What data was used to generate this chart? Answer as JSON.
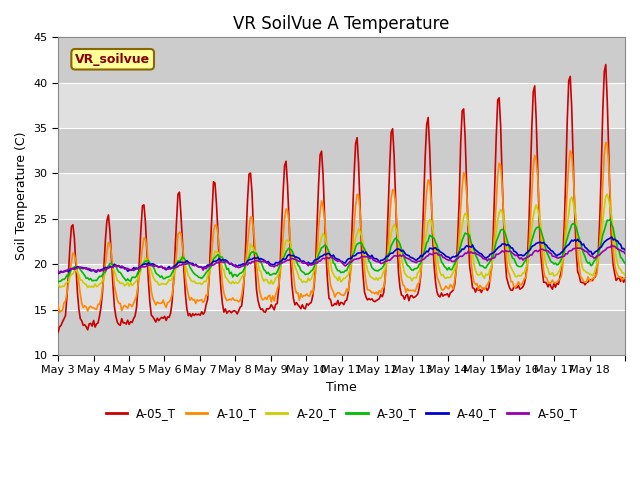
{
  "title": "VR SoilVue A Temperature",
  "ylabel": "Soil Temperature (C)",
  "xlabel": "Time",
  "ylim": [
    10,
    45
  ],
  "yticks": [
    10,
    15,
    20,
    25,
    30,
    35,
    40,
    45
  ],
  "xtick_labels": [
    "May 3",
    "May 4",
    "May 5",
    "May 6",
    "May 7",
    "May 8",
    "May 9",
    "May 10",
    "May 11",
    "May 12",
    "May 13",
    "May 14",
    "May 15",
    "May 16",
    "May 17",
    "May 18"
  ],
  "legend_labels": [
    "A-05_T",
    "A-10_T",
    "A-20_T",
    "A-30_T",
    "A-40_T",
    "A-50_T"
  ],
  "line_colors": [
    "#cc0000",
    "#ff8800",
    "#cccc00",
    "#00bb00",
    "#0000cc",
    "#9900aa"
  ],
  "annotation_text": "VR_soilvue",
  "annotation_bg": "#ffff99",
  "annotation_border": "#886600",
  "background_color": "#ffffff",
  "plot_bg_color": "#e8e8e8",
  "grid_color": "#ffffff",
  "title_fontsize": 12,
  "axis_fontsize": 9,
  "tick_fontsize": 8
}
